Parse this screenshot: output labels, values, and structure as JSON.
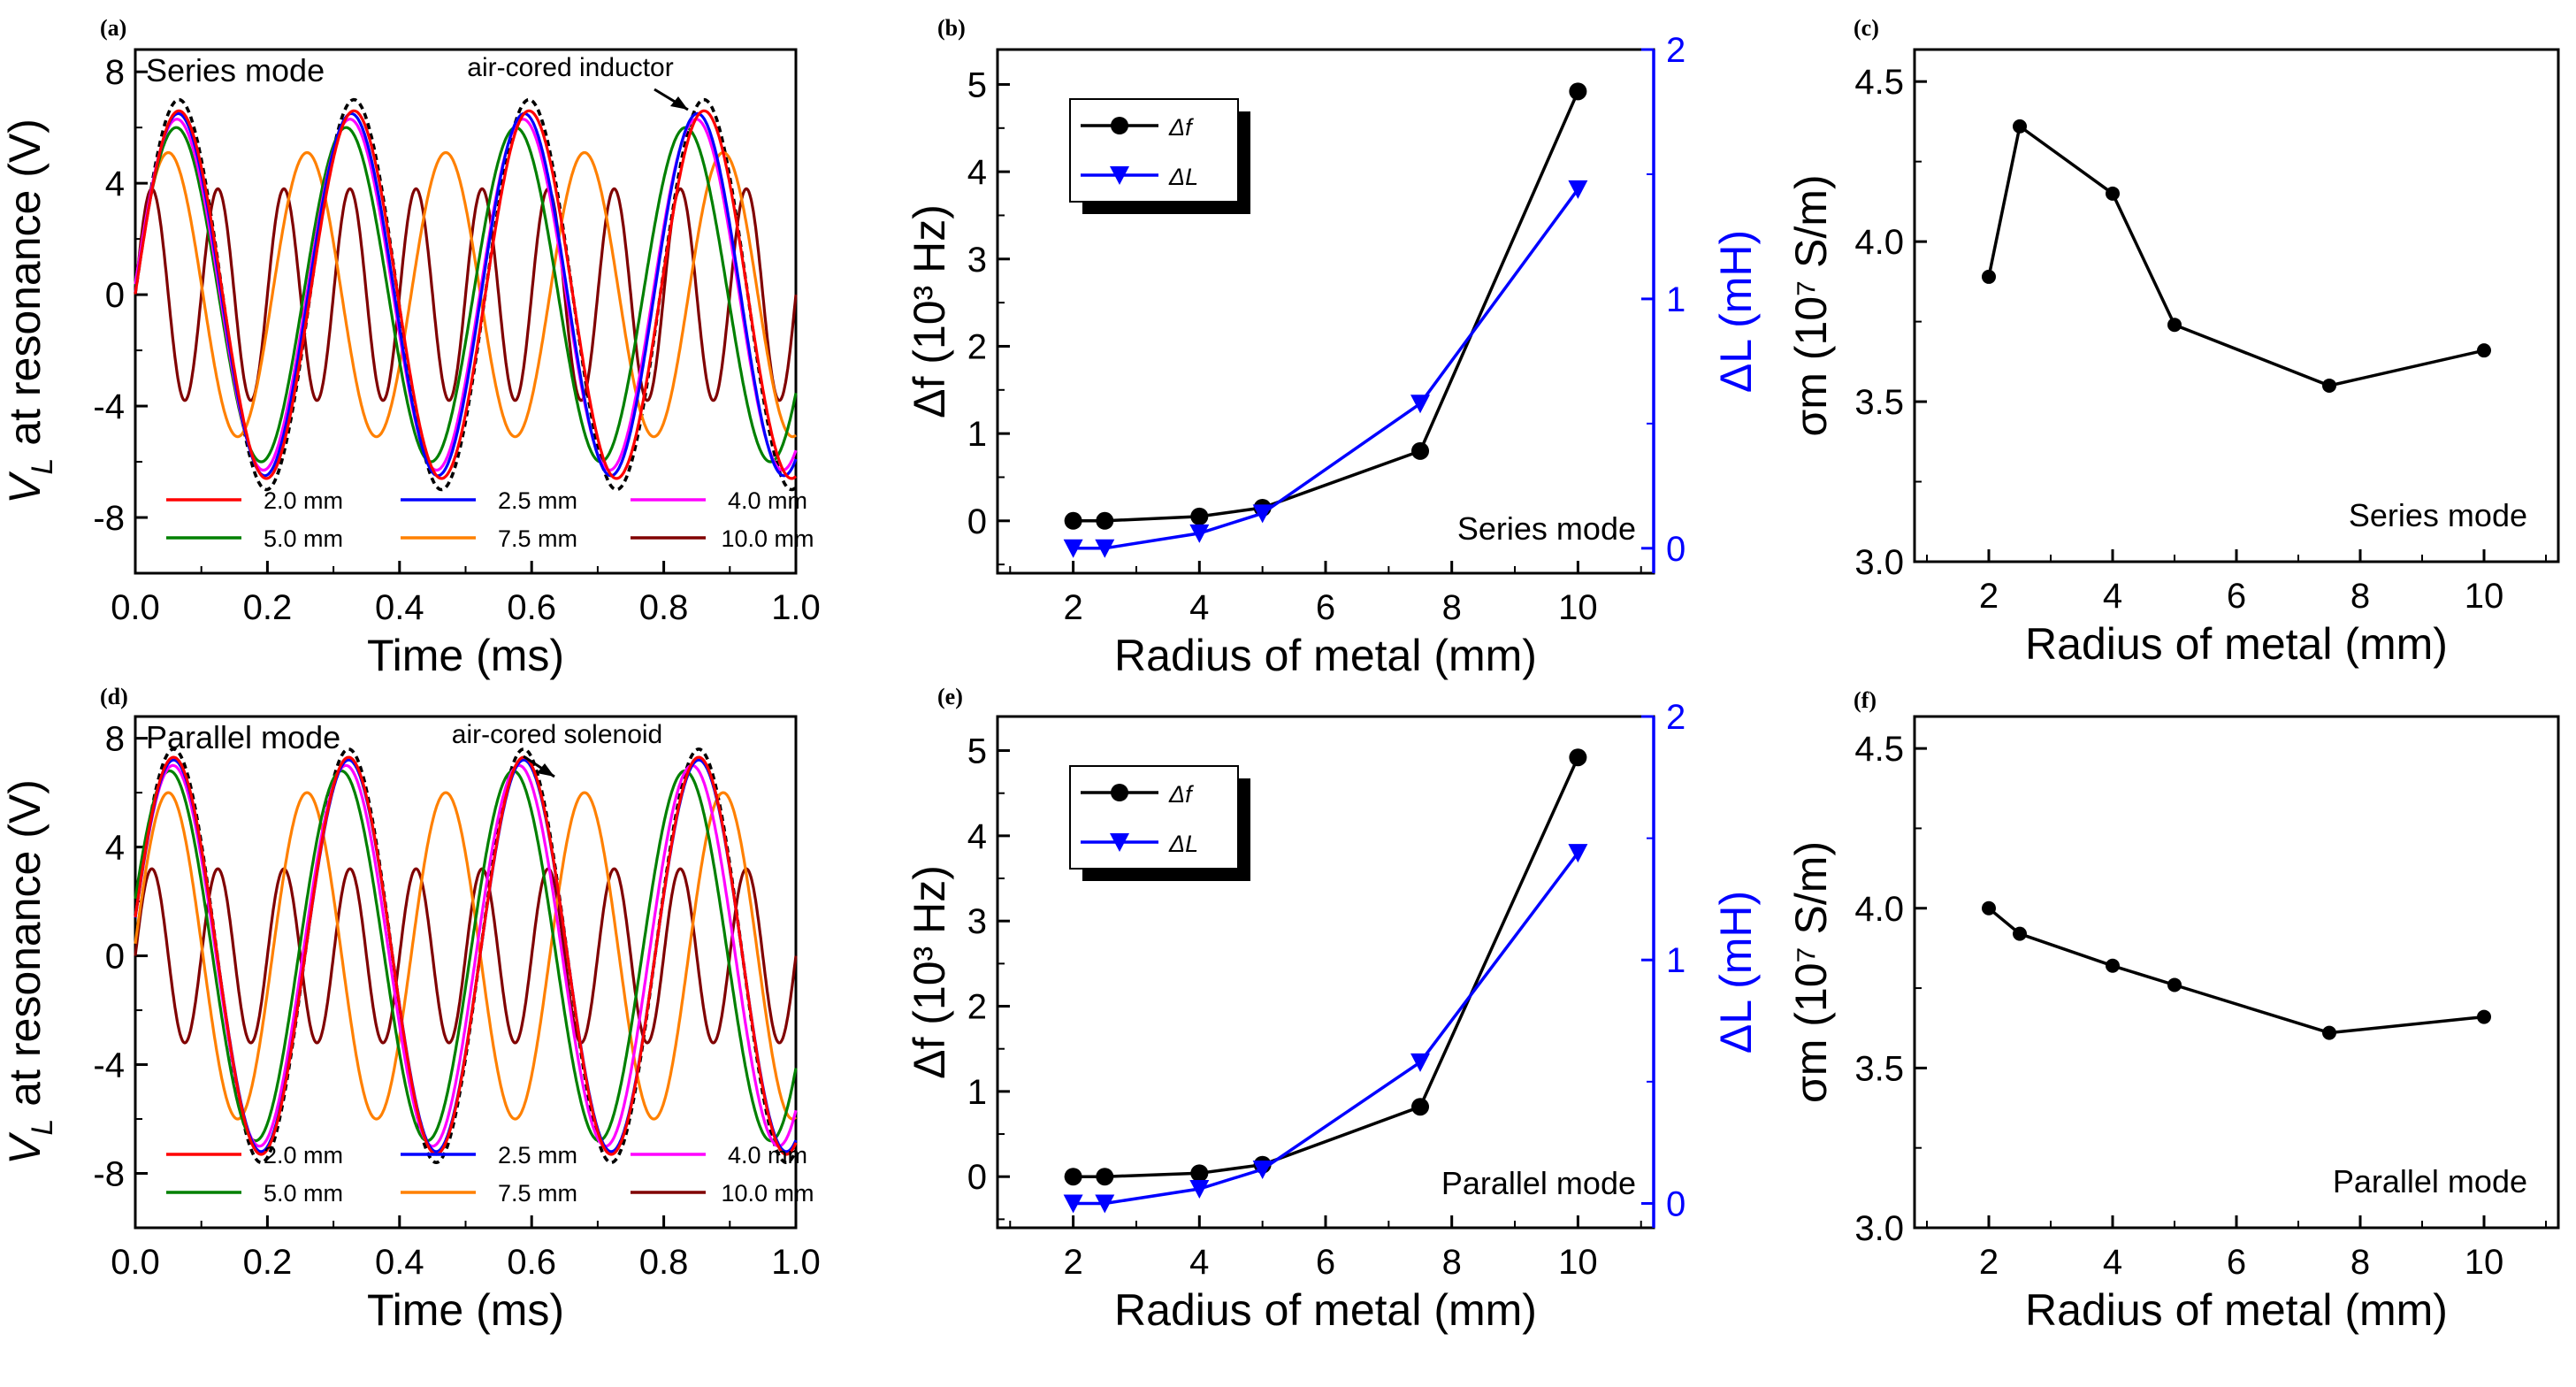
{
  "figure": {
    "panels": [
      {
        "id": "a",
        "letter": "(a)",
        "type": "line",
        "mode_label": "Series mode",
        "annotation": "air-cored inductor",
        "xlabel": "Time (ms)",
        "ylabel_main": "V",
        "ylabel_sub": "L",
        "ylabel_rest": " at resonance (V)",
        "xlim": [
          0.0,
          1.0
        ],
        "ylim": [
          -10,
          8.8
        ],
        "xticks": [
          "0.0",
          "0.2",
          "0.4",
          "0.6",
          "0.8",
          "1.0"
        ],
        "yticks": [
          "-8",
          "-4",
          "0",
          "4",
          "8"
        ],
        "reference": {
          "amplitude": 7.0,
          "period": 0.265,
          "phase_peak": 0.066,
          "color": "#000000",
          "dashed": true
        },
        "series": [
          {
            "name": "2.0 mm",
            "color": "#ff0000",
            "amplitude": 6.6,
            "period": 0.265,
            "phase_peak": 0.066
          },
          {
            "name": "2.5 mm",
            "color": "#0000ff",
            "amplitude": 6.5,
            "period": 0.262,
            "phase_peak": 0.065
          },
          {
            "name": "4.0 mm",
            "color": "#ff00ff",
            "amplitude": 6.3,
            "period": 0.262,
            "phase_peak": 0.063
          },
          {
            "name": "5.0 mm",
            "color": "#008000",
            "amplitude": 6.0,
            "period": 0.257,
            "phase_peak": 0.062
          },
          {
            "name": "7.5 mm",
            "color": "#ff8000",
            "amplitude": 5.1,
            "period": 0.21,
            "phase_peak": 0.05
          },
          {
            "name": "10.0 mm",
            "color": "#800000",
            "amplitude": 3.8,
            "period": 0.1,
            "phase_peak": 0.025
          }
        ]
      },
      {
        "id": "d",
        "letter": "(d)",
        "type": "line",
        "mode_label": "Parallel mode",
        "annotation": "air-cored solenoid",
        "xlabel": "Time (ms)",
        "ylabel_main": "V",
        "ylabel_sub": "L",
        "ylabel_rest": " at resonance (V)",
        "xlim": [
          0.0,
          1.0
        ],
        "ylim": [
          -10,
          8.8
        ],
        "xticks": [
          "0.0",
          "0.2",
          "0.4",
          "0.6",
          "0.8",
          "1.0"
        ],
        "yticks": [
          "-8",
          "-4",
          "0",
          "4",
          "8"
        ],
        "reference": {
          "amplitude": 7.6,
          "period": 0.265,
          "phase_peak": 0.058,
          "color": "#000000",
          "dashed": true
        },
        "series": [
          {
            "name": "2.0 mm",
            "color": "#ff0000",
            "amplitude": 7.3,
            "period": 0.265,
            "phase_peak": 0.058
          },
          {
            "name": "2.5 mm",
            "color": "#0000ff",
            "amplitude": 7.2,
            "period": 0.265,
            "phase_peak": 0.058
          },
          {
            "name": "4.0 mm",
            "color": "#ff00ff",
            "amplitude": 7.0,
            "period": 0.262,
            "phase_peak": 0.057
          },
          {
            "name": "5.0 mm",
            "color": "#008000",
            "amplitude": 6.8,
            "period": 0.26,
            "phase_peak": 0.052
          },
          {
            "name": "7.5 mm",
            "color": "#ff8000",
            "amplitude": 6.0,
            "period": 0.21,
            "phase_peak": 0.05
          },
          {
            "name": "10.0 mm",
            "color": "#800000",
            "amplitude": 3.2,
            "period": 0.1,
            "phase_peak": 0.025
          }
        ]
      },
      {
        "id": "b",
        "letter": "(b)",
        "type": "dual-axis-line",
        "mode_label": "Series mode",
        "xlabel": "Radius of metal (mm)",
        "ylabel_left": "Δf (10³ Hz)",
        "ylabel_right": "ΔL (mH)",
        "xlim": [
          0.8,
          11.2
        ],
        "ylim_left": [
          -0.6,
          5.4
        ],
        "ylim_right": [
          -0.1,
          2.0
        ],
        "xticks": [
          "2",
          "4",
          "6",
          "8",
          "10"
        ],
        "yticks_left": [
          "0",
          "1",
          "2",
          "3",
          "4",
          "5"
        ],
        "yticks_right": [
          "0",
          "1",
          "2"
        ],
        "legend": [
          "Δf",
          "ΔL"
        ],
        "x": [
          2,
          2.5,
          4,
          5,
          7.5,
          10
        ],
        "series": [
          {
            "name": "Δf",
            "axis": "left",
            "color": "#000000",
            "marker": "circle",
            "values": [
              0.0,
              0.0,
              0.05,
              0.15,
              0.8,
              4.92
            ]
          },
          {
            "name": "ΔL",
            "axis": "right",
            "color": "#0000ff",
            "marker": "triangle-down",
            "values": [
              0.0,
              0.0,
              0.06,
              0.14,
              0.58,
              1.44
            ]
          }
        ]
      },
      {
        "id": "e",
        "letter": "(e)",
        "type": "dual-axis-line",
        "mode_label": "Parallel mode",
        "xlabel": "Radius of metal (mm)",
        "ylabel_left": "Δf (10³ Hz)",
        "ylabel_right": "ΔL (mH)",
        "xlim": [
          0.8,
          11.2
        ],
        "ylim_left": [
          -0.6,
          5.4
        ],
        "ylim_right": [
          -0.1,
          2.0
        ],
        "xticks": [
          "2",
          "4",
          "6",
          "8",
          "10"
        ],
        "yticks_left": [
          "0",
          "1",
          "2",
          "3",
          "4",
          "5"
        ],
        "yticks_right": [
          "0",
          "1",
          "2"
        ],
        "legend": [
          "Δf",
          "ΔL"
        ],
        "x": [
          2,
          2.5,
          4,
          5,
          7.5,
          10
        ],
        "series": [
          {
            "name": "Δf",
            "axis": "left",
            "color": "#000000",
            "marker": "circle",
            "values": [
              0.0,
              0.0,
              0.04,
              0.14,
              0.82,
              4.92
            ]
          },
          {
            "name": "ΔL",
            "axis": "right",
            "color": "#0000ff",
            "marker": "triangle-down",
            "values": [
              0.0,
              0.0,
              0.06,
              0.14,
              0.58,
              1.44
            ]
          }
        ]
      },
      {
        "id": "c",
        "letter": "(c)",
        "type": "line",
        "mode_label": "Series mode",
        "xlabel": "Radius of metal (mm)",
        "ylabel": "σm (10⁷ S/m)",
        "xlim": [
          0.8,
          11.2
        ],
        "ylim": [
          3.0,
          4.6
        ],
        "xticks": [
          "2",
          "4",
          "6",
          "8",
          "10"
        ],
        "yticks": [
          "3.0",
          "3.5",
          "4.0",
          "4.5"
        ],
        "x": [
          2,
          2.5,
          4,
          5,
          7.5,
          10
        ],
        "values": [
          3.89,
          4.36,
          4.15,
          3.74,
          3.55,
          3.66
        ]
      },
      {
        "id": "f",
        "letter": "(f)",
        "type": "line",
        "mode_label": "Parallel mode",
        "xlabel": "Radius of metal (mm)",
        "ylabel": "σm (10⁷ S/m)",
        "xlim": [
          0.8,
          11.2
        ],
        "ylim": [
          3.0,
          4.6
        ],
        "xticks": [
          "2",
          "4",
          "6",
          "8",
          "10"
        ],
        "yticks": [
          "3.0",
          "3.5",
          "4.0",
          "4.5"
        ],
        "x": [
          2,
          2.5,
          4,
          5,
          7.5,
          10
        ],
        "values": [
          4.0,
          3.92,
          3.82,
          3.76,
          3.61,
          3.66
        ]
      }
    ]
  }
}
